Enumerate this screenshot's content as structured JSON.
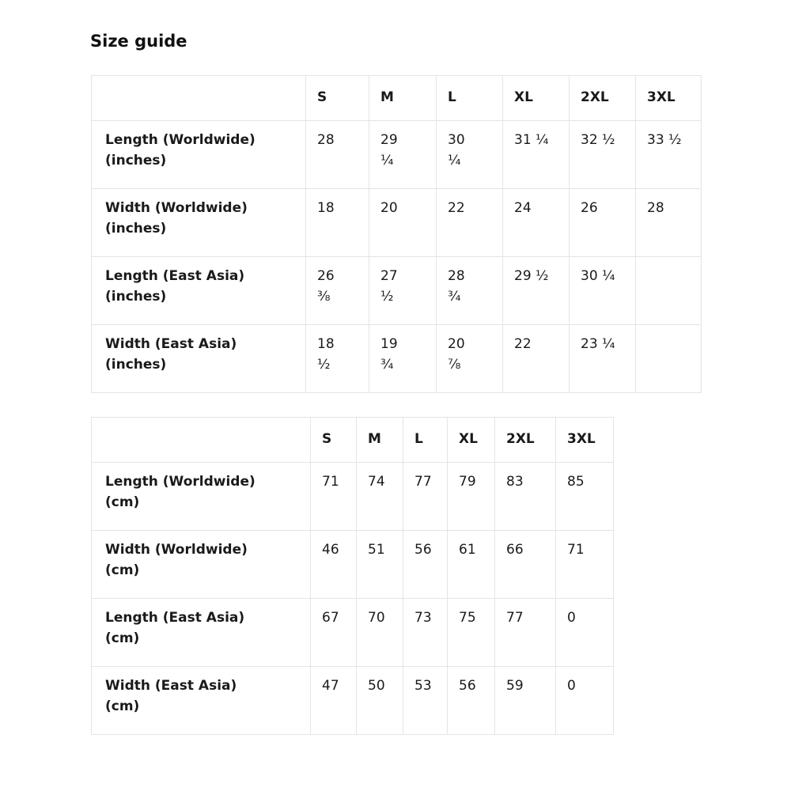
{
  "page_title": "Size guide",
  "colors": {
    "text": "#1a1a1a",
    "border": "#e4e4e4",
    "background": "#ffffff"
  },
  "tables": [
    {
      "name": "inches",
      "columns": [
        "S",
        "M",
        "L",
        "XL",
        "2XL",
        "3XL"
      ],
      "rows": [
        {
          "label": "Length (Worldwide)\n(inches)",
          "values": [
            "28",
            "29\n¼",
            "30\n¼",
            "31 ¼",
            "32 ½",
            "33 ½"
          ]
        },
        {
          "label": "Width (Worldwide)\n(inches)",
          "values": [
            "18",
            "20",
            "22",
            "24",
            "26",
            "28"
          ]
        },
        {
          "label": "Length (East Asia)\n(inches)",
          "values": [
            "26\n⅜",
            "27\n½",
            "28\n¾",
            "29 ½",
            "30 ¼",
            ""
          ]
        },
        {
          "label": "Width (East Asia)\n(inches)",
          "values": [
            "18\n½",
            "19\n¾",
            "20\n⅞",
            "22",
            "23 ¼",
            ""
          ]
        }
      ]
    },
    {
      "name": "cm",
      "columns": [
        "S",
        "M",
        "L",
        "XL",
        "2XL",
        "3XL"
      ],
      "rows": [
        {
          "label": "Length (Worldwide)\n(cm)",
          "values": [
            "71",
            "74",
            "77",
            "79",
            "83",
            "85"
          ]
        },
        {
          "label": "Width (Worldwide)\n(cm)",
          "values": [
            "46",
            "51",
            "56",
            "61",
            "66",
            "71"
          ]
        },
        {
          "label": "Length (East Asia)\n(cm)",
          "values": [
            "67",
            "70",
            "73",
            "75",
            "77",
            "0"
          ]
        },
        {
          "label": "Width (East Asia)\n(cm)",
          "values": [
            "47",
            "50",
            "53",
            "56",
            "59",
            "0"
          ]
        }
      ]
    }
  ]
}
